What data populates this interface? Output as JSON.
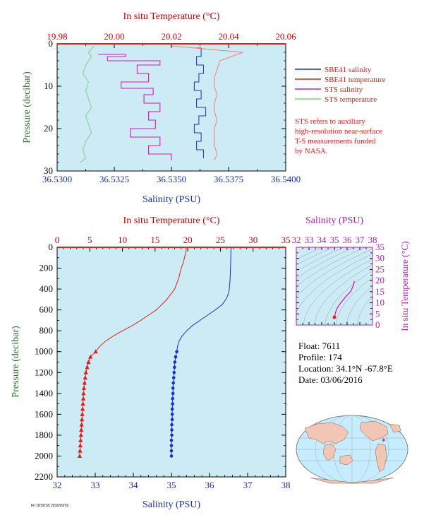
{
  "colors": {
    "plot_bg": "#cdebf5",
    "sbe_salinity": "#1530d0",
    "sbe_temperature": "#e0201c",
    "sts_salinity": "#e010c8",
    "sts_temperature": "#7fd07f",
    "temp_axis": "#cc0000",
    "sal_axis": "#1a2fb8",
    "pressure_axis": "#2e6b2e",
    "ts_axis": "#b020b0"
  },
  "info": {
    "float": "Float:  7611",
    "profile": "Profile:  174",
    "location": "Location:  34.1°N  -67.8°E",
    "date": "Date:  03/06/2016"
  },
  "note_lines": [
    "STS refers to auxiliary",
    "high-resolution near-surface",
    "T-S measurements funded",
    "by NASA."
  ],
  "footer": "Fri 18:56:55 2016/03/16",
  "chart_data": [
    {
      "type": "line",
      "id": "near_surface",
      "top_axis_title": "In situ Temperature (°C)",
      "top_ticks": [
        "19.98",
        "20.00",
        "20.02",
        "20.04",
        "20.06"
      ],
      "temp_range": [
        19.98,
        20.06
      ],
      "xlabel": "Salinity (PSU)",
      "sal_ticks": [
        "36.5300",
        "36.5325",
        "36.5350",
        "36.5375",
        "36.5400"
      ],
      "sal_range": [
        36.53,
        36.54
      ],
      "ylabel": "Pressure (decibar)",
      "y_ticks": [
        "0",
        "10",
        "20",
        "30"
      ],
      "ylim": [
        0,
        30
      ],
      "legend": [
        {
          "label": "SBE41 salinity",
          "color": "#1530d0"
        },
        {
          "label": "SBE41 temperature",
          "color": "#e0201c"
        },
        {
          "label": "STS salinity",
          "color": "#e010c8"
        },
        {
          "label": "STS temperature",
          "color": "#7fd07f"
        }
      ],
      "sbe_salinity": {
        "pressure": [
          1,
          3,
          5,
          7,
          9,
          11,
          13,
          15,
          17,
          19,
          21,
          23,
          25,
          27
        ],
        "salinity": [
          36.536,
          36.5363,
          36.5361,
          36.5364,
          36.5362,
          36.536,
          36.5363,
          36.5361,
          36.5365,
          36.5362,
          36.536,
          36.5363,
          36.5361,
          36.5364
        ]
      },
      "sbe_temperature": {
        "pressure": [
          0.5,
          2,
          4,
          6,
          8,
          10,
          12,
          14,
          16,
          18,
          20,
          22,
          24,
          26,
          27.5
        ],
        "temperature": [
          20.02,
          20.045,
          20.037,
          20.036,
          20.035,
          20.035,
          20.036,
          20.035,
          20.035,
          20.036,
          20.035,
          20.035,
          20.035,
          20.036,
          20.035
        ]
      },
      "sts_salinity": {
        "pressure": [
          2.5,
          3,
          4,
          5,
          7,
          9,
          10.5,
          12,
          14,
          16,
          18,
          20,
          22,
          24,
          26,
          27.5
        ],
        "salinity": [
          36.5318,
          36.533,
          36.5322,
          36.5345,
          36.5335,
          36.534,
          36.5328,
          36.5342,
          36.5338,
          36.5345,
          36.534,
          36.5343,
          36.5332,
          36.5345,
          36.534,
          36.535
        ]
      },
      "sts_temperature": {
        "pressure": [
          0.5,
          2,
          3,
          5,
          7,
          9,
          11,
          13,
          15,
          17,
          19,
          21,
          23,
          25,
          27,
          28
        ],
        "temperature": [
          19.993,
          19.991,
          19.992,
          19.99,
          19.989,
          19.991,
          19.99,
          19.991,
          19.992,
          19.99,
          19.991,
          19.992,
          19.99,
          19.989,
          19.99,
          19.988
        ]
      }
    },
    {
      "type": "line",
      "id": "full_profile",
      "top_axis_title": "In situ Temperature (°C)",
      "top_ticks": [
        "0",
        "5",
        "10",
        "15",
        "20",
        "25",
        "30",
        "35"
      ],
      "temp_range": [
        0,
        35
      ],
      "xlabel": "Salinity (PSU)",
      "sal_ticks": [
        "32",
        "33",
        "34",
        "35",
        "36",
        "37",
        "38"
      ],
      "sal_range": [
        32,
        38
      ],
      "ylabel": "Pressure (decibar)",
      "y_ticks": [
        "0",
        "200",
        "400",
        "600",
        "800",
        "1000",
        "1200",
        "1400",
        "1600",
        "1800",
        "2000",
        "2200"
      ],
      "ylim": [
        0,
        2200
      ],
      "temperature": {
        "pressure": [
          0,
          50,
          100,
          150,
          200,
          300,
          400,
          500,
          600,
          650,
          700,
          750,
          800,
          850,
          900,
          950,
          1000
        ],
        "values": [
          19.8,
          19.7,
          19.5,
          19.3,
          19.0,
          18.6,
          18.0,
          16.8,
          15.2,
          14.0,
          12.8,
          11.5,
          10.0,
          8.6,
          7.4,
          6.5,
          5.9
        ]
      },
      "temperature_samples": {
        "pressure": [
          1000,
          1050,
          1100,
          1150,
          1200,
          1250,
          1300,
          1350,
          1400,
          1450,
          1500,
          1550,
          1600,
          1650,
          1700,
          1750,
          1800,
          1850,
          1900,
          1950,
          2000
        ],
        "values": [
          5.9,
          5.1,
          4.8,
          4.6,
          4.4,
          4.3,
          4.2,
          4.1,
          4.05,
          4.0,
          3.95,
          3.9,
          3.85,
          3.8,
          3.75,
          3.7,
          3.65,
          3.6,
          3.55,
          3.5,
          3.45
        ]
      },
      "salinity": {
        "pressure": [
          0,
          50,
          100,
          200,
          300,
          400,
          450,
          500,
          550,
          600,
          650,
          700,
          750,
          800,
          850,
          900,
          950,
          1000
        ],
        "values": [
          36.57,
          36.56,
          36.56,
          36.55,
          36.54,
          36.52,
          36.49,
          36.43,
          36.33,
          36.15,
          35.95,
          35.75,
          35.55,
          35.4,
          35.28,
          35.2,
          35.16,
          35.14
        ]
      },
      "salinity_samples": {
        "pressure": [
          1000,
          1050,
          1100,
          1150,
          1200,
          1250,
          1300,
          1350,
          1400,
          1450,
          1500,
          1550,
          1600,
          1650,
          1700,
          1750,
          1800,
          1850,
          1900,
          1950,
          2000
        ],
        "values": [
          35.14,
          35.11,
          35.09,
          35.08,
          35.07,
          35.06,
          35.05,
          35.04,
          35.04,
          35.03,
          35.03,
          35.02,
          35.02,
          35.02,
          35.01,
          35.01,
          35.01,
          35.0,
          35.0,
          35.0,
          35.0
        ]
      }
    },
    {
      "type": "scatter",
      "id": "ts_diagram",
      "top_axis_title": "Salinity (PSU)",
      "x_ticks": [
        "32",
        "33",
        "34",
        "35",
        "36",
        "37",
        "38"
      ],
      "xlim": [
        32,
        38
      ],
      "right_axis_title": "In situ Temperature (°C)",
      "y_ticks": [
        "0",
        "5",
        "10",
        "15",
        "20",
        "25",
        "30",
        "35"
      ],
      "ylim": [
        0,
        35
      ],
      "salinity": [
        36.57,
        36.5,
        36.3,
        35.9,
        35.5,
        35.2,
        35.1,
        35.05,
        35.02,
        35.0
      ],
      "temperature": [
        19.8,
        18.0,
        15.2,
        12.8,
        10.0,
        7.4,
        5.9,
        4.6,
        4.0,
        3.5
      ]
    }
  ]
}
